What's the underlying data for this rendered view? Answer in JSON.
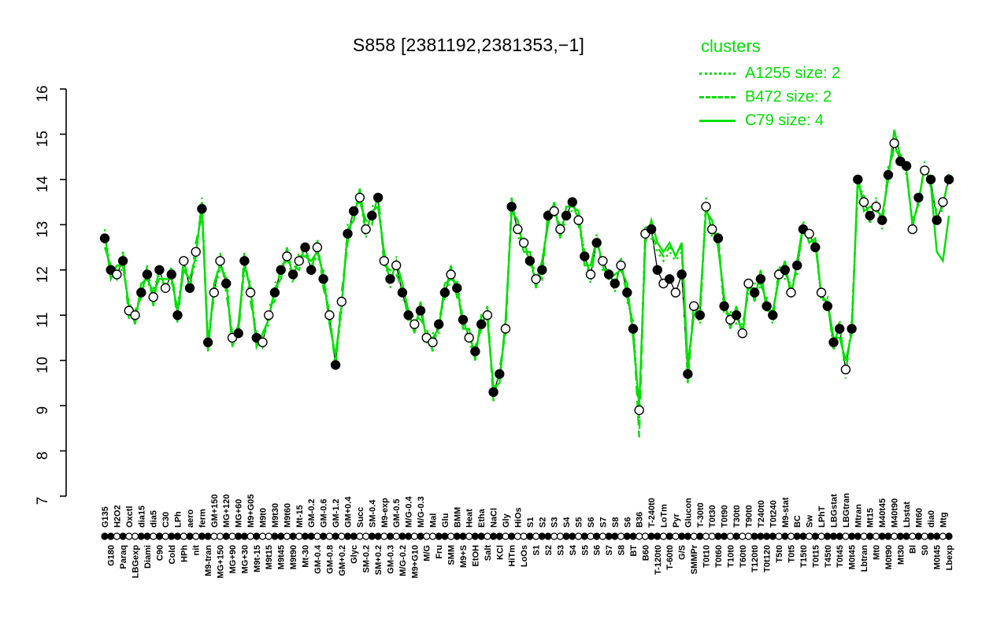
{
  "page": {
    "title": "S858 [2381192,2381353,−1]"
  },
  "legend": {
    "title": "clusters",
    "items": [
      {
        "name": "A1255",
        "label": "A1255 size: 2",
        "line_style": "dotted"
      },
      {
        "name": "B472",
        "label": "B472 size: 2",
        "line_style": "dashed"
      },
      {
        "name": "C79",
        "label": "C79 size: 4",
        "line_style": "solid"
      }
    ]
  },
  "colors": {
    "cluster_green": "#00e000",
    "series_black": "#000000",
    "background": "#ffffff",
    "open_marker_fill": "#ffffff"
  },
  "chart_data": {
    "type": "line",
    "title": "S858 [2381192,2381353,−1]",
    "xlabel": "",
    "ylabel": "",
    "ylim": [
      7,
      16
    ],
    "yticks": [
      7,
      8,
      9,
      10,
      11,
      12,
      13,
      14,
      15,
      16
    ],
    "grid": false,
    "legend_position": "top-right",
    "categories": [
      "G135",
      "G180",
      "H2O2",
      "Paraq",
      "Oxctl",
      "LBGexp",
      "dia15",
      "Diami",
      "dia5",
      "C90",
      "C30",
      "Cold",
      "LPh",
      "HPh",
      "aero",
      "nit",
      "ferm",
      "M9-tran",
      "GM+150",
      "MG+150",
      "MG+120",
      "MG+90",
      "MG+60",
      "MG+30",
      "M9+G05",
      "M9t-15",
      "M9t0",
      "M9t15",
      "M9t30",
      "M9t45",
      "M9t60",
      "M9t90",
      "Mt-15",
      "Mt-30",
      "GM-0.2",
      "GM-0.4",
      "GM-0.6",
      "GM-0.8",
      "GM-1.2",
      "GM+0.2",
      "GM+0.4",
      "Glyc",
      "Succ",
      "SM-0.2",
      "SM-0.4",
      "SM+0.2",
      "M9-exp",
      "GM-0.3",
      "GM-0.5",
      "M/G-0.2",
      "M/G-0.4",
      "M9+G10",
      "M/G-0.3",
      "M/G",
      "Mal",
      "Fru",
      "Glu",
      "SMM",
      "BMM",
      "M9+S",
      "Heat",
      "EtOH",
      "Etha",
      "Salt",
      "NaCl",
      "KCl",
      "Gly",
      "HiTm",
      "HiOs",
      "LoOs",
      "S1",
      "S1",
      "S2",
      "S2",
      "S3",
      "S3",
      "S4",
      "S4",
      "S5",
      "S5",
      "S6",
      "S6",
      "S7",
      "S7",
      "S8",
      "S8",
      "S6",
      "BT",
      "B36",
      "B60",
      "T-240t0",
      "T-120t0",
      "LoTm",
      "T-60t0",
      "Pyr",
      "G/S",
      "Glucon",
      "SMMPr",
      "T-30t0",
      "T0t10",
      "T0t30",
      "T0t60",
      "T0t90",
      "T10t0",
      "T30t0",
      "T60t0",
      "T90t0",
      "T120t0",
      "T240t0",
      "T0t120",
      "T0t240",
      "T5t0",
      "M9-stat",
      "T0t5",
      "BC",
      "T15t0",
      "Sw",
      "T0t15",
      "LPhT",
      "T45t0",
      "LBGstat",
      "T0t45",
      "LBGtran",
      "M0t45",
      "Mtran",
      "Lbtran",
      "Mt15",
      "Mt0",
      "M40t45",
      "M0t90",
      "M40t90",
      "Mt30",
      "Lbstat",
      "Bl",
      "Mt60",
      "S0",
      "dia0",
      "M0t45",
      "Mtg",
      "Lbexp"
    ],
    "marker_filled": "11010011010110101100101101001101011010101100110101101001101101101101001011001101010110110011010110100110100111101011010111011010110110101101",
    "series": [
      {
        "name": "S858",
        "role": "main",
        "color": "black",
        "line_style": "solid",
        "values": [
          12.7,
          12.0,
          11.9,
          12.2,
          11.1,
          11.0,
          11.5,
          11.9,
          11.4,
          12.0,
          11.6,
          11.9,
          11.0,
          12.2,
          11.6,
          12.4,
          13.35,
          10.4,
          11.5,
          12.2,
          11.7,
          10.5,
          10.6,
          12.2,
          11.5,
          10.5,
          10.4,
          11.0,
          11.5,
          12.0,
          12.3,
          11.9,
          12.2,
          12.5,
          12.0,
          12.5,
          11.8,
          11.0,
          9.9,
          11.3,
          12.8,
          13.3,
          13.6,
          12.9,
          13.2,
          13.6,
          12.2,
          11.8,
          12.1,
          11.5,
          11.0,
          10.8,
          11.1,
          10.5,
          10.4,
          10.8,
          11.5,
          11.9,
          11.6,
          10.9,
          10.5,
          10.2,
          10.8,
          11.0,
          9.3,
          9.7,
          10.7,
          13.4,
          12.9,
          12.6,
          12.2,
          11.8,
          12.0,
          13.2,
          13.3,
          12.9,
          13.2,
          13.5,
          13.1,
          12.3,
          11.9,
          12.6,
          12.2,
          11.9,
          11.7,
          12.1,
          11.5,
          10.7,
          8.9,
          12.8,
          12.9,
          12.0,
          11.7,
          11.8,
          11.5,
          11.9,
          9.7,
          11.2,
          11.0,
          13.4,
          12.9,
          12.7,
          11.2,
          10.9,
          11.0,
          10.6,
          11.7,
          11.5,
          11.8,
          11.2,
          11.0,
          11.9,
          12.0,
          11.5,
          12.1,
          12.9,
          12.8,
          12.5,
          11.5,
          11.2,
          10.4,
          10.7,
          9.8,
          10.7,
          14.0,
          13.5,
          13.2,
          13.4,
          13.1,
          14.1,
          14.8,
          14.4,
          14.3,
          12.9,
          13.6,
          14.2,
          14.0,
          13.1,
          13.5,
          14.0
        ]
      },
      {
        "name": "A1255",
        "role": "cluster",
        "color": "green",
        "line_style": "dotted",
        "values": [
          12.9,
          11.9,
          12.0,
          12.0,
          11.3,
          10.9,
          11.6,
          11.7,
          11.6,
          11.9,
          11.7,
          11.7,
          11.2,
          12.1,
          11.7,
          12.2,
          13.6,
          10.3,
          11.6,
          12.0,
          11.9,
          10.4,
          10.7,
          12.0,
          11.7,
          10.4,
          10.5,
          10.8,
          11.7,
          11.9,
          12.4,
          11.7,
          12.4,
          12.4,
          12.1,
          12.3,
          12.0,
          10.9,
          10.0,
          11.1,
          13.0,
          13.2,
          13.7,
          12.7,
          13.4,
          13.5,
          12.3,
          11.6,
          12.3,
          11.4,
          11.1,
          10.6,
          11.3,
          10.4,
          10.6,
          10.6,
          11.6,
          11.7,
          11.8,
          10.8,
          10.6,
          10.0,
          11.0,
          10.9,
          9.4,
          9.5,
          10.9,
          13.2,
          13.1,
          12.4,
          12.3,
          11.6,
          12.2,
          13.1,
          13.4,
          12.8,
          13.3,
          13.3,
          13.2,
          12.4,
          11.7,
          12.8,
          12.0,
          12.0,
          11.5,
          12.3,
          11.3,
          10.9,
          8.7,
          13.0,
          12.7,
          12.4,
          12.2,
          12.4,
          12.2,
          12.4,
          9.5,
          11.3,
          10.8,
          13.6,
          12.7,
          12.8,
          11.0,
          11.1,
          10.8,
          10.8,
          11.5,
          11.7,
          11.6,
          11.4,
          10.8,
          12.1,
          11.8,
          11.7,
          11.9,
          13.1,
          12.6,
          12.7,
          11.3,
          11.4,
          10.2,
          10.9,
          9.6,
          10.9,
          13.8,
          13.7,
          13.0,
          13.6,
          12.9,
          14.3,
          14.6,
          14.6,
          14.1,
          13.1,
          13.4,
          14.4,
          13.8,
          13.3,
          13.3,
          14.2
        ]
      },
      {
        "name": "B472",
        "role": "cluster",
        "color": "green",
        "line_style": "dashed",
        "values": [
          12.5,
          12.1,
          11.8,
          12.4,
          10.9,
          11.1,
          11.4,
          12.1,
          11.2,
          12.1,
          11.5,
          12.1,
          10.8,
          12.3,
          11.5,
          12.6,
          13.2,
          10.5,
          11.4,
          12.4,
          11.5,
          10.6,
          10.5,
          12.4,
          11.3,
          10.6,
          10.3,
          11.2,
          11.3,
          12.1,
          12.2,
          12.1,
          12.0,
          12.6,
          11.9,
          12.7,
          11.6,
          11.1,
          9.8,
          11.5,
          12.6,
          13.4,
          13.5,
          13.1,
          13.0,
          13.7,
          12.1,
          12.0,
          11.9,
          11.6,
          10.9,
          11.0,
          10.9,
          10.7,
          10.2,
          10.9,
          11.4,
          12.1,
          11.4,
          11.0,
          10.3,
          10.3,
          10.7,
          11.2,
          9.1,
          9.8,
          10.6,
          13.6,
          12.7,
          12.7,
          12.1,
          12.0,
          11.8,
          13.3,
          13.2,
          13.0,
          13.0,
          13.6,
          13.0,
          12.4,
          11.8,
          12.7,
          12.0,
          12.0,
          11.6,
          12.2,
          11.4,
          10.8,
          8.3,
          12.9,
          12.8,
          12.5,
          12.3,
          12.5,
          12.4,
          12.5,
          9.5,
          11.3,
          10.9,
          13.5,
          12.8,
          12.8,
          11.1,
          11.0,
          10.9,
          10.7,
          11.6,
          11.6,
          11.7,
          11.3,
          10.9,
          12.0,
          11.9,
          11.6,
          12.0,
          13.0,
          12.7,
          12.6,
          11.4,
          11.3,
          10.3,
          10.8,
          9.7,
          10.8,
          13.9,
          13.6,
          13.1,
          13.5,
          13.0,
          14.2,
          14.7,
          14.5,
          14.2,
          13.0,
          13.5,
          14.3,
          13.9,
          13.2,
          13.4,
          14.1
        ]
      },
      {
        "name": "C79",
        "role": "cluster",
        "color": "green",
        "line_style": "solid",
        "values": [
          12.8,
          11.8,
          12.1,
          12.1,
          11.2,
          10.8,
          11.7,
          11.8,
          11.5,
          11.8,
          11.8,
          11.8,
          11.1,
          12.0,
          11.8,
          12.3,
          13.5,
          10.2,
          11.7,
          12.1,
          11.8,
          10.3,
          10.8,
          12.1,
          11.6,
          10.3,
          10.6,
          10.9,
          11.6,
          11.8,
          12.5,
          11.8,
          12.3,
          12.3,
          12.2,
          12.4,
          11.9,
          10.8,
          10.1,
          11.2,
          12.9,
          13.1,
          13.8,
          12.8,
          13.3,
          13.4,
          12.4,
          11.7,
          12.2,
          11.7,
          11.1,
          10.6,
          11.3,
          10.4,
          10.5,
          10.7,
          11.7,
          11.8,
          11.7,
          10.7,
          10.7,
          10.0,
          11.0,
          10.9,
          9.4,
          9.5,
          10.9,
          13.3,
          13.1,
          12.4,
          12.4,
          11.6,
          12.2,
          13.0,
          13.5,
          12.7,
          13.4,
          13.4,
          13.3,
          12.1,
          12.1,
          12.7,
          12.1,
          11.8,
          11.9,
          12.0,
          11.7,
          10.5,
          9.0,
          12.6,
          13.1,
          12.6,
          12.4,
          12.6,
          12.3,
          12.6,
          9.9,
          11.0,
          11.2,
          13.3,
          13.1,
          12.5,
          11.4,
          10.7,
          11.2,
          10.5,
          11.8,
          11.3,
          12.0,
          11.1,
          11.1,
          11.8,
          12.2,
          11.4,
          12.2,
          13.0,
          12.6,
          12.7,
          11.4,
          11.3,
          10.5,
          10.5,
          10.0,
          10.6,
          14.1,
          13.3,
          13.4,
          13.3,
          13.2,
          14.0,
          15.1,
          14.5,
          14.2,
          13.0,
          13.5,
          14.3,
          13.9,
          12.4,
          12.2,
          13.2
        ]
      }
    ]
  }
}
